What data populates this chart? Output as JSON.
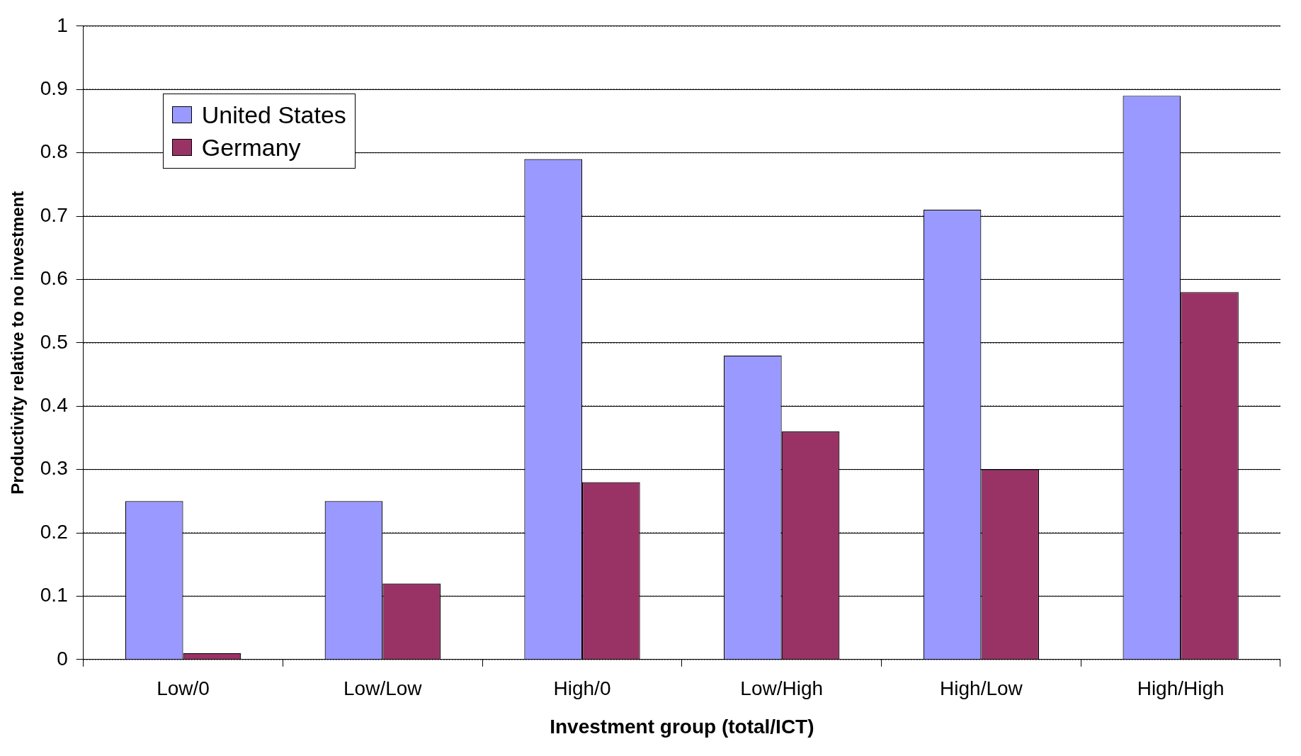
{
  "chart_data": {
    "type": "bar",
    "xlabel": "Investment group (total/ICT)",
    "ylabel": "Productivity relative to no investment",
    "categories": [
      "Low/0",
      "Low/Low",
      "High/0",
      "Low/High",
      "High/Low",
      "High/High"
    ],
    "series": [
      {
        "name": "United States",
        "color": "#9999ff",
        "values": [
          0.25,
          0.25,
          0.79,
          0.48,
          0.71,
          0.89
        ]
      },
      {
        "name": "Germany",
        "color": "#993366",
        "values": [
          0.01,
          0.12,
          0.28,
          0.36,
          0.3,
          0.58
        ]
      }
    ],
    "ylim": [
      0,
      1
    ],
    "yticks": [
      0,
      0.1,
      0.2,
      0.3,
      0.4,
      0.5,
      0.6,
      0.7,
      0.8,
      0.9,
      1
    ],
    "grid": "y",
    "legend": "top left"
  }
}
